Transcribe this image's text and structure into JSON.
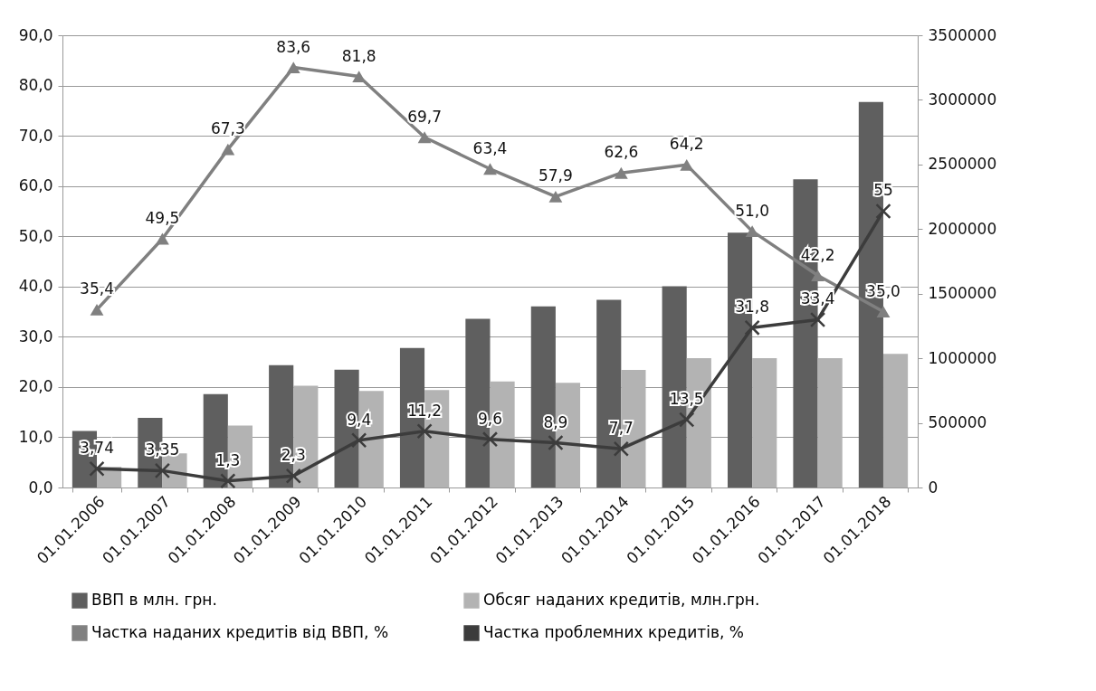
{
  "chart_data": {
    "type": "bar",
    "categories": [
      "01.01.2006",
      "01.01.2007",
      "01.01.2008",
      "01.01.2009",
      "01.01.2010",
      "01.01.2011",
      "01.01.2012",
      "01.01.2013",
      "01.01.2014",
      "01.01.2015",
      "01.01.2016",
      "01.01.2017",
      "01.01.2018"
    ],
    "series": [
      {
        "name": "ВВП в млн. грн.",
        "axis": "y2",
        "color": "#5f5f5f",
        "values": [
          437000,
          539000,
          723000,
          946000,
          911000,
          1079000,
          1305000,
          1401000,
          1452000,
          1557000,
          1973000,
          2385000,
          2983000
        ]
      },
      {
        "name": "Обсяг наданих кредитів, млн.грн.",
        "axis": "y2",
        "color": "#b3b3b3",
        "values": [
          160000,
          264000,
          480000,
          787000,
          747000,
          755000,
          820000,
          811000,
          910000,
          1001000,
          1001000,
          1001000,
          1035000
        ]
      },
      {
        "name": "Частка наданих кредитів від ВВП, %",
        "type": "line",
        "axis": "y",
        "color": "#808080",
        "marker": "triangle",
        "values": [
          35.4,
          49.5,
          67.3,
          83.6,
          81.8,
          69.7,
          63.4,
          57.9,
          62.6,
          64.2,
          51.0,
          42.2,
          35.0
        ],
        "value_labels": [
          "35,4",
          "49,5",
          "67,3",
          "83,6",
          "81,8",
          "69,7",
          "63,4",
          "57,9",
          "62,6",
          "64,2",
          "51,0",
          "42,2",
          "35,0"
        ]
      },
      {
        "name": "Частка проблемних кредитів, %",
        "type": "line",
        "axis": "y",
        "color": "#3c3c3c",
        "marker": "cross",
        "values": [
          3.74,
          3.35,
          1.3,
          2.3,
          9.4,
          11.2,
          9.6,
          8.9,
          7.7,
          13.5,
          31.8,
          33.4,
          55
        ],
        "value_labels": [
          "3,74",
          "3,35",
          "1,3",
          "2,3",
          "9,4",
          "11,2",
          "9,6",
          "8,9",
          "7,7",
          "13,5",
          "31,8",
          "33,4",
          "55"
        ]
      }
    ],
    "ylim": [
      0,
      90
    ],
    "yticks": [
      {
        "value": 0,
        "label": "0,0"
      },
      {
        "value": 10,
        "label": "10,0"
      },
      {
        "value": 20,
        "label": "20,0"
      },
      {
        "value": 30,
        "label": "30,0"
      },
      {
        "value": 40,
        "label": "40,0"
      },
      {
        "value": 50,
        "label": "50,0"
      },
      {
        "value": 60,
        "label": "60,0"
      },
      {
        "value": 70,
        "label": "70,0"
      },
      {
        "value": 80,
        "label": "80,0"
      },
      {
        "value": 90,
        "label": "90,0"
      }
    ],
    "y2lim": [
      0,
      3500000
    ],
    "y2ticks": [
      0,
      500000,
      1000000,
      1500000,
      2000000,
      2500000,
      3000000,
      3500000
    ],
    "grid": "y",
    "legend": "bottom"
  }
}
